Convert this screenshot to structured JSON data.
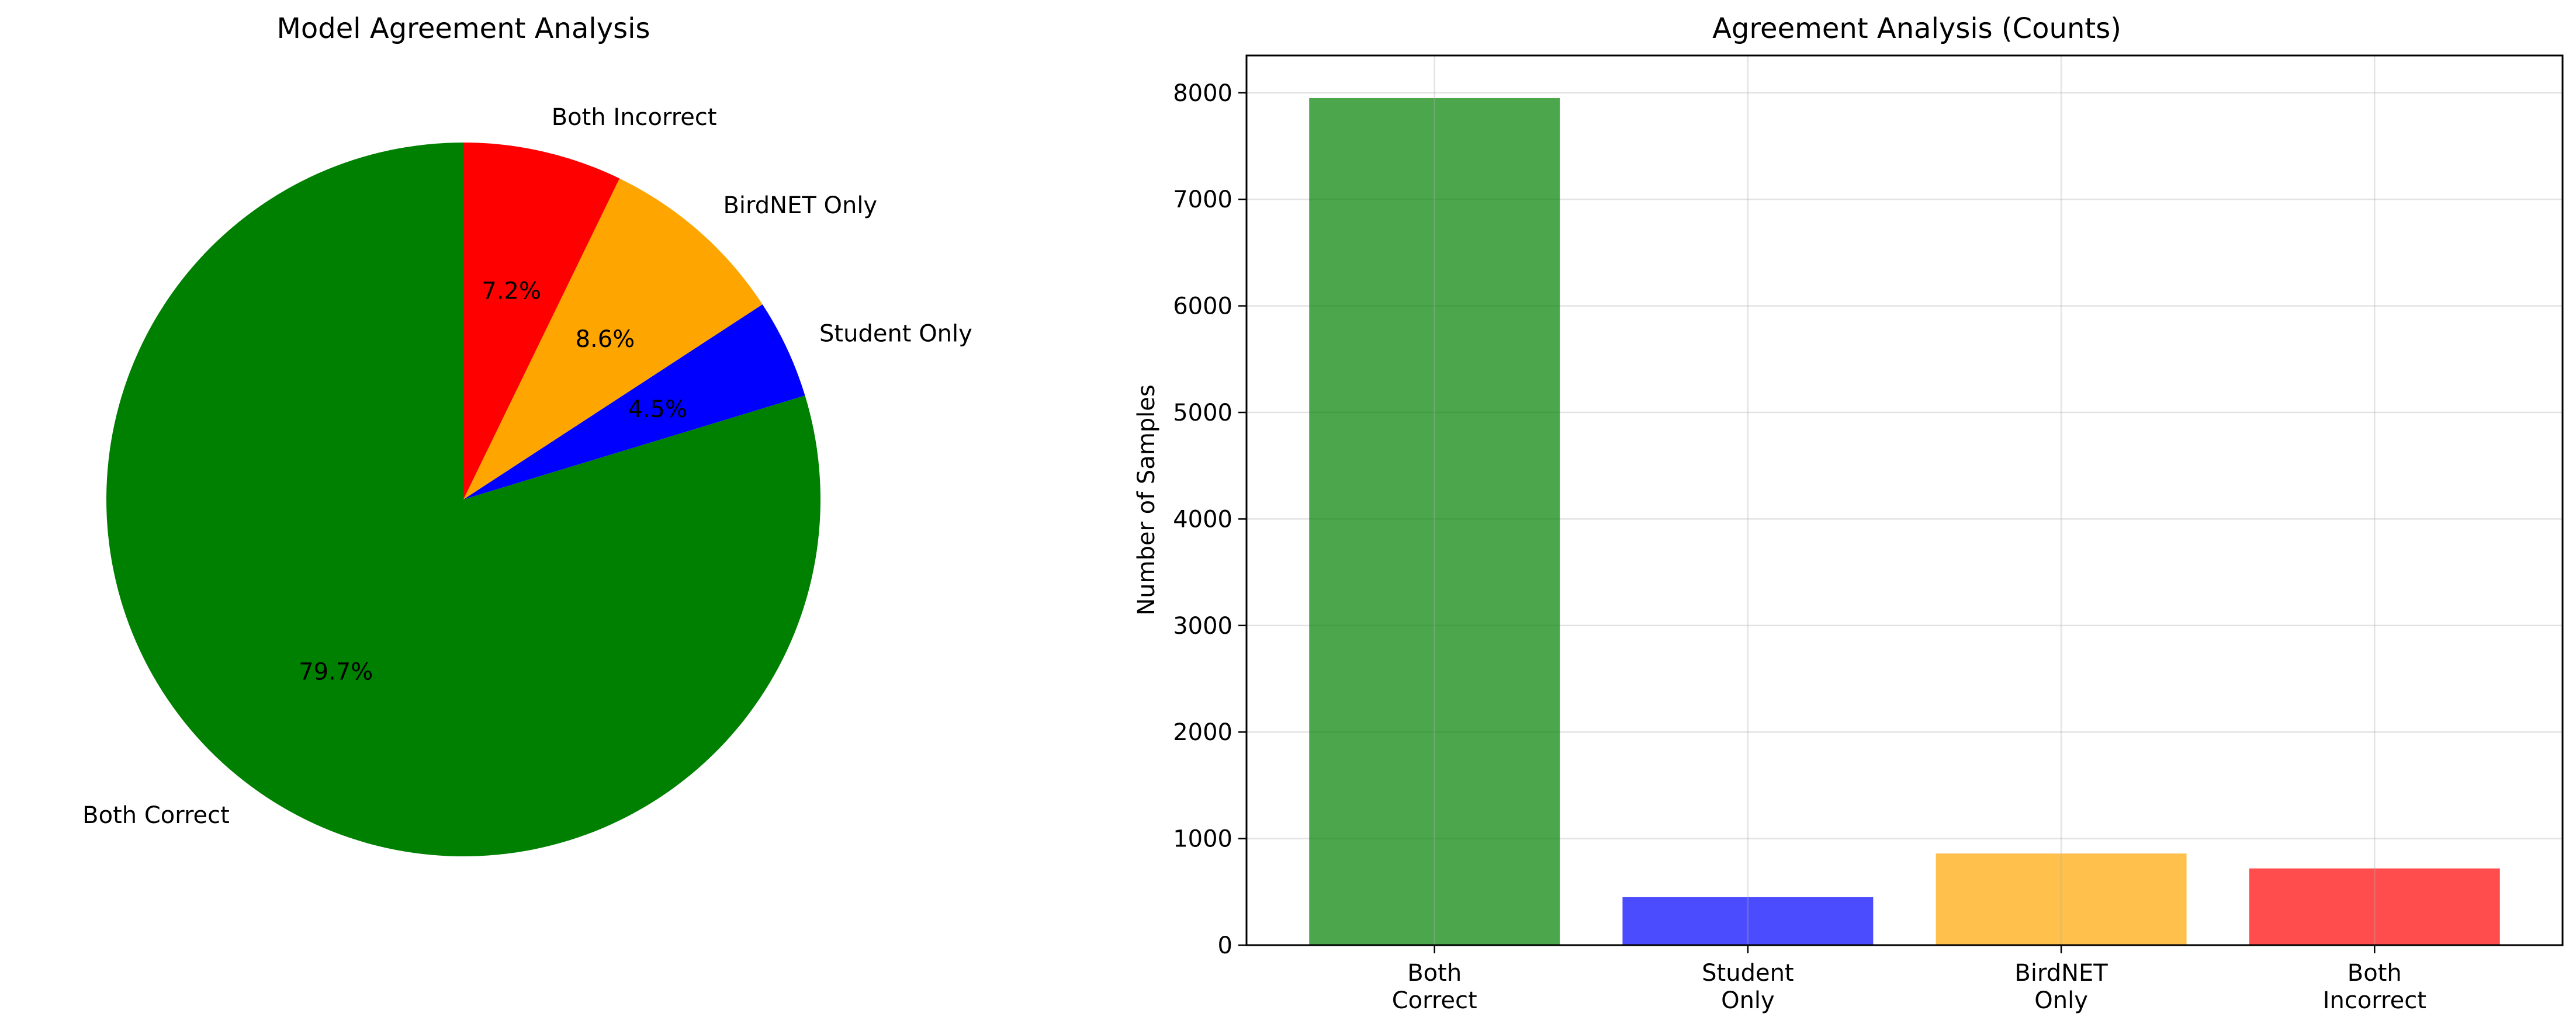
{
  "chart_data": [
    {
      "type": "pie",
      "title": "Model Agreement Analysis",
      "labels": [
        "Both Correct",
        "Student Only",
        "BirdNET Only",
        "Both Incorrect"
      ],
      "values": [
        79.7,
        4.5,
        8.6,
        7.2
      ],
      "percent_labels": [
        "79.7%",
        "4.5%",
        "8.6%",
        "7.2%"
      ],
      "colors": [
        "#008000",
        "#0000ff",
        "#ffa500",
        "#ff0000"
      ],
      "start_angle": 90,
      "direction": "counterclockwise"
    },
    {
      "type": "bar",
      "title": "Agreement Analysis (Counts)",
      "categories": [
        "Both\nCorrect",
        "Student\nOnly",
        "BirdNET\nOnly",
        "Both\nIncorrect"
      ],
      "values": [
        7950,
        450,
        860,
        720
      ],
      "colors": [
        "#008000",
        "#0000ff",
        "#ffa500",
        "#ff0000"
      ],
      "bar_alpha": 0.7,
      "xlabel": "",
      "ylabel": "Number of Samples",
      "ylim": [
        0,
        8350
      ],
      "yticks": [
        0,
        1000,
        2000,
        3000,
        4000,
        5000,
        6000,
        7000,
        8000
      ],
      "grid": true
    }
  ]
}
